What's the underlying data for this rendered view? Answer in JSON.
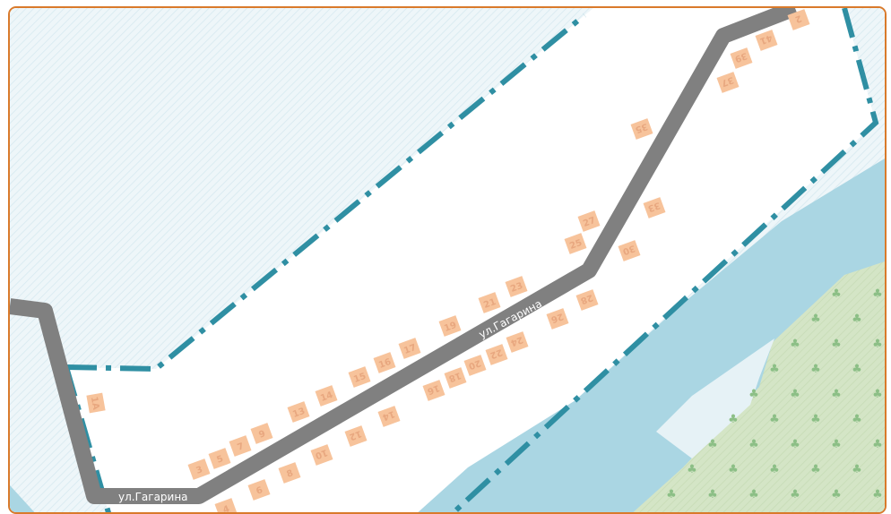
{
  "colors": {
    "border": "#d97a2b",
    "road": "#808080",
    "boundary": "#2f8fa3",
    "water": "#a9d5e2",
    "forest": "#cfe2bf",
    "plot": "#f7c39b",
    "plot_text": "#e8a77f",
    "hatch_bg": "#e9f4f7"
  },
  "streets": [
    {
      "name": "ул.Гагарина"
    },
    {
      "name": "ул.Гагарина"
    }
  ],
  "houses": [
    {
      "number": "1А",
      "rotation": 80
    },
    {
      "number": "3",
      "rotation": -20
    },
    {
      "number": "5",
      "rotation": -20
    },
    {
      "number": "7",
      "rotation": -20
    },
    {
      "number": "9",
      "rotation": -20
    },
    {
      "number": "13",
      "rotation": -20
    },
    {
      "number": "14",
      "rotation": -20
    },
    {
      "number": "15",
      "rotation": -20
    },
    {
      "number": "16",
      "rotation": -20
    },
    {
      "number": "17",
      "rotation": -20
    },
    {
      "number": "19",
      "rotation": -20
    },
    {
      "number": "21",
      "rotation": -20
    },
    {
      "number": "23",
      "rotation": -20
    },
    {
      "number": "25",
      "rotation": -20
    },
    {
      "number": "27",
      "rotation": -20
    },
    {
      "number": "4",
      "rotation": -20
    },
    {
      "number": "6",
      "rotation": -20
    },
    {
      "number": "8",
      "rotation": -20
    },
    {
      "number": "10",
      "rotation": 160
    },
    {
      "number": "12",
      "rotation": 160
    },
    {
      "number": "14",
      "rotation": 160
    },
    {
      "number": "16",
      "rotation": 160
    },
    {
      "number": "18",
      "rotation": 160
    },
    {
      "number": "20",
      "rotation": 160
    },
    {
      "number": "22",
      "rotation": 160
    },
    {
      "number": "24",
      "rotation": 160
    },
    {
      "number": "26",
      "rotation": 160
    },
    {
      "number": "28",
      "rotation": 160
    },
    {
      "number": "30",
      "rotation": 160
    },
    {
      "number": "33",
      "rotation": 160
    },
    {
      "number": "35",
      "rotation": 160
    },
    {
      "number": "37",
      "rotation": 160
    },
    {
      "number": "39",
      "rotation": 160
    },
    {
      "number": "41",
      "rotation": 160
    },
    {
      "number": "2",
      "rotation": 160
    }
  ]
}
